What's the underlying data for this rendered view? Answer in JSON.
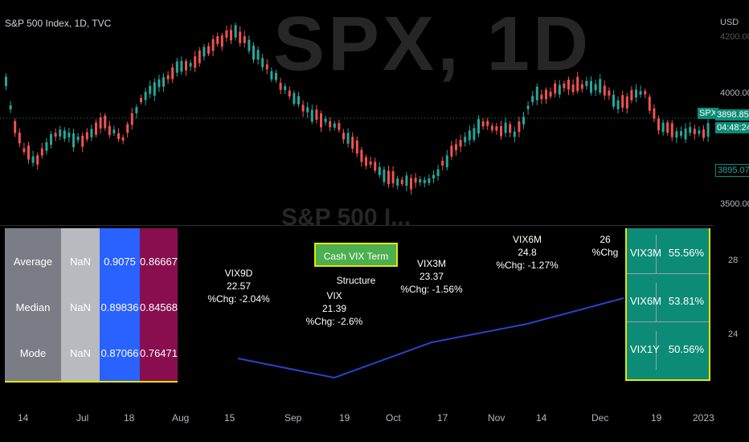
{
  "symbol_label": "S&P 500 Index, 1D, TVC",
  "watermark": "SPX, 1D",
  "watermark_sub": "S&P 500 I...",
  "price_axis": {
    "currency": "USD",
    "top_label": "4200.00",
    "ticks": [
      "4000.00",
      "3500.00"
    ],
    "lower_ticks": [
      "28",
      "24"
    ],
    "badge_symbol": "SPX",
    "badge_price": "3898.85",
    "badge_time": "04:48:24",
    "badge_low": "3895.07"
  },
  "time_axis": [
    "14",
    "Jul",
    "18",
    "Aug",
    "15",
    "Sep",
    "19",
    "Oct",
    "17",
    "Nov",
    "14",
    "Dec",
    "19",
    "2023"
  ],
  "stats_table": {
    "rows": [
      {
        "label": "Average",
        "c1": "NaN",
        "c2": "0.9075",
        "c3": "0.86667"
      },
      {
        "label": "Median",
        "c1": "NaN",
        "c2": "0.89836",
        "c3": "0.84568"
      },
      {
        "label": "Mode",
        "c1": "NaN",
        "c2": "0.87066",
        "c3": "0.76471"
      }
    ],
    "colors": {
      "label_bg": "#7a7d85",
      "c1_bg": "#b8bac0",
      "c2_bg": "#2962ff",
      "c3_bg": "#880e4f"
    }
  },
  "term_structure_button": "Cash VIX Term Structure",
  "vix_labels": [
    {
      "name": "VIX9D",
      "value": "22.57",
      "chg": "%Chg: -2.04%"
    },
    {
      "name": "VIX",
      "value": "21.39",
      "chg": "%Chg: -2.6%"
    },
    {
      "name": "VIX3M",
      "value": "23.37",
      "chg": "%Chg: -1.56%"
    },
    {
      "name": "VIX6M",
      "value": "24.8",
      "chg": "%Chg: -1.27%"
    },
    {
      "name": "26",
      "value": "",
      "chg": "%Chg"
    }
  ],
  "right_table": [
    {
      "label": "VIX3M",
      "value": "55.56%"
    },
    {
      "label": "VIX6M",
      "value": "53.81%"
    },
    {
      "label": "VIX1Y",
      "value": "50.56%"
    }
  ],
  "colors": {
    "up": "#26a69a",
    "down": "#ef5350",
    "line": "#2644c8",
    "accent_green": "#0c8c77",
    "yellow": "#e6e600"
  }
}
